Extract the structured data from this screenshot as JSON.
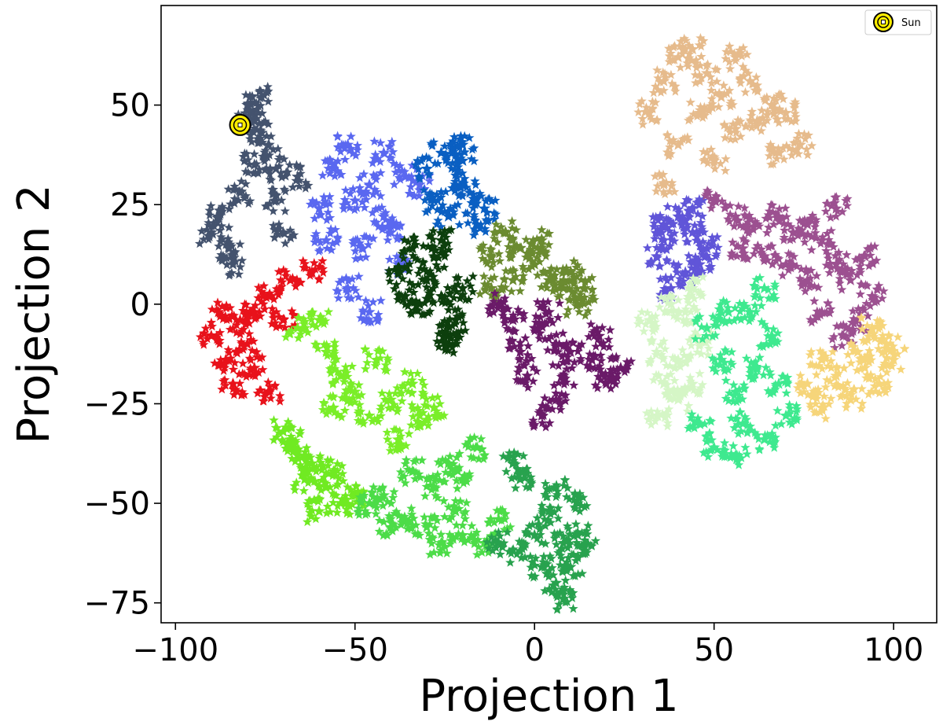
{
  "chart_data": {
    "type": "scatter",
    "title": "",
    "xlabel": "Projection 1",
    "ylabel": "Projection 2",
    "xlim": [
      -104,
      112
    ],
    "ylim": [
      -80,
      75
    ],
    "xticks": [
      -100,
      -50,
      0,
      50,
      100
    ],
    "yticks": [
      -75,
      -50,
      -25,
      0,
      25,
      50
    ],
    "xtick_labels": [
      "−100",
      "−50",
      "0",
      "50",
      "100"
    ],
    "ytick_labels": [
      "−75",
      "−50",
      "−25",
      "0",
      "25",
      "50"
    ],
    "marker": "star",
    "grid": false,
    "legend": {
      "position": "top-right",
      "entries": [
        "Sun"
      ]
    },
    "highlight": {
      "label": "Sun",
      "x": -82,
      "y": 45,
      "color": "#ffee00",
      "edge": "#000000"
    },
    "clusters": [
      {
        "color": "#44536e",
        "points": [
          [
            -88,
            22
          ],
          [
            -85,
            14
          ],
          [
            -82,
            28
          ],
          [
            -78,
            35
          ],
          [
            -76,
            43
          ],
          [
            -80,
            50
          ],
          [
            -78,
            46
          ],
          [
            -72,
            26
          ],
          [
            -70,
            18
          ],
          [
            -84,
            10
          ],
          [
            -66,
            32
          ],
          [
            -74,
            40
          ],
          [
            -76,
            52
          ],
          [
            -90,
            18
          ],
          [
            -72,
            34
          ]
        ]
      },
      {
        "color": "#5a68f0",
        "points": [
          [
            -60,
            24
          ],
          [
            -56,
            34
          ],
          [
            -52,
            40
          ],
          [
            -46,
            30
          ],
          [
            -48,
            14
          ],
          [
            -42,
            22
          ],
          [
            -38,
            10
          ],
          [
            -36,
            32
          ],
          [
            -32,
            30
          ],
          [
            -52,
            4
          ],
          [
            -46,
            -2
          ],
          [
            -58,
            16
          ],
          [
            -42,
            38
          ],
          [
            -50,
            26
          ],
          [
            -40,
            18
          ]
        ]
      },
      {
        "color": "#0a5fc2",
        "points": [
          [
            -30,
            34
          ],
          [
            -26,
            38
          ],
          [
            -22,
            30
          ],
          [
            -18,
            28
          ],
          [
            -20,
            36
          ],
          [
            -14,
            24
          ],
          [
            -24,
            22
          ],
          [
            -16,
            20
          ],
          [
            -28,
            26
          ],
          [
            -20,
            40
          ]
        ]
      },
      {
        "color": "#0d3f0d",
        "points": [
          [
            -38,
            8
          ],
          [
            -34,
            14
          ],
          [
            -30,
            6
          ],
          [
            -28,
            12
          ],
          [
            -26,
            2
          ],
          [
            -22,
            -4
          ],
          [
            -24,
            -10
          ],
          [
            -32,
            0
          ],
          [
            -20,
            4
          ],
          [
            -26,
            16
          ],
          [
            -36,
            2
          ],
          [
            -24,
            -8
          ]
        ]
      },
      {
        "color": "#6b8b30",
        "points": [
          [
            -12,
            12
          ],
          [
            -8,
            18
          ],
          [
            -4,
            14
          ],
          [
            0,
            10
          ],
          [
            4,
            6
          ],
          [
            8,
            4
          ],
          [
            12,
            0
          ],
          [
            14,
            4
          ],
          [
            -6,
            6
          ],
          [
            -12,
            4
          ],
          [
            2,
            16
          ],
          [
            10,
            8
          ]
        ]
      },
      {
        "color": "#6a1a68",
        "points": [
          [
            -10,
            0
          ],
          [
            -6,
            -4
          ],
          [
            0,
            -6
          ],
          [
            4,
            -2
          ],
          [
            6,
            -10
          ],
          [
            10,
            -12
          ],
          [
            8,
            -18
          ],
          [
            6,
            -24
          ],
          [
            2,
            -28
          ],
          [
            -4,
            -12
          ],
          [
            18,
            -8
          ],
          [
            24,
            -16
          ],
          [
            16,
            -14
          ],
          [
            -2,
            -18
          ],
          [
            20,
            -20
          ]
        ]
      },
      {
        "color": "#e8121b",
        "points": [
          [
            -90,
            -8
          ],
          [
            -86,
            -14
          ],
          [
            -82,
            -4
          ],
          [
            -84,
            -20
          ],
          [
            -78,
            -16
          ],
          [
            -74,
            -22
          ],
          [
            -78,
            -2
          ],
          [
            -74,
            2
          ],
          [
            -68,
            6
          ],
          [
            -62,
            8
          ],
          [
            -70,
            -4
          ],
          [
            -88,
            -2
          ],
          [
            -80,
            -10
          ]
        ]
      },
      {
        "color": "#7aee28",
        "points": [
          [
            -66,
            -6
          ],
          [
            -58,
            -12
          ],
          [
            -54,
            -18
          ],
          [
            -50,
            -22
          ],
          [
            -46,
            -28
          ],
          [
            -40,
            -24
          ],
          [
            -34,
            -20
          ],
          [
            -32,
            -28
          ],
          [
            -38,
            -34
          ],
          [
            -28,
            -26
          ],
          [
            -60,
            -4
          ],
          [
            -56,
            -26
          ],
          [
            -44,
            -14
          ]
        ]
      },
      {
        "color": "#70ea22",
        "points": [
          [
            -70,
            -32
          ],
          [
            -66,
            -38
          ],
          [
            -64,
            -44
          ],
          [
            -58,
            -46
          ],
          [
            -54,
            -50
          ],
          [
            -62,
            -40
          ],
          [
            -56,
            -42
          ],
          [
            -68,
            -34
          ],
          [
            -50,
            -48
          ],
          [
            -60,
            -52
          ]
        ]
      },
      {
        "color": "#4cdc48",
        "points": [
          [
            -46,
            -50
          ],
          [
            -42,
            -48
          ],
          [
            -36,
            -54
          ],
          [
            -30,
            -56
          ],
          [
            -26,
            -60
          ],
          [
            -20,
            -58
          ],
          [
            -14,
            -60
          ],
          [
            -20,
            -44
          ],
          [
            -24,
            -40
          ],
          [
            -16,
            -36
          ],
          [
            -28,
            -46
          ],
          [
            -34,
            -42
          ],
          [
            -10,
            -54
          ],
          [
            -40,
            -56
          ],
          [
            -22,
            -52
          ]
        ]
      },
      {
        "color": "#28a24e",
        "points": [
          [
            -10,
            -60
          ],
          [
            -4,
            -62
          ],
          [
            0,
            -58
          ],
          [
            4,
            -52
          ],
          [
            6,
            -46
          ],
          [
            8,
            -60
          ],
          [
            10,
            -66
          ],
          [
            12,
            -58
          ],
          [
            14,
            -62
          ],
          [
            6,
            -70
          ],
          [
            8,
            -74
          ],
          [
            -6,
            -40
          ],
          [
            -4,
            -44
          ],
          [
            2,
            -66
          ],
          [
            12,
            -50
          ]
        ]
      },
      {
        "color": "#e6bb8c",
        "points": [
          [
            32,
            48
          ],
          [
            36,
            56
          ],
          [
            40,
            62
          ],
          [
            44,
            64
          ],
          [
            48,
            58
          ],
          [
            52,
            52
          ],
          [
            56,
            44
          ],
          [
            60,
            56
          ],
          [
            66,
            50
          ],
          [
            70,
            48
          ],
          [
            74,
            40
          ],
          [
            68,
            38
          ],
          [
            40,
            40
          ],
          [
            36,
            30
          ],
          [
            50,
            36
          ],
          [
            62,
            46
          ],
          [
            46,
            48
          ],
          [
            56,
            62
          ]
        ]
      },
      {
        "color": "#6055d8",
        "points": [
          [
            34,
            12
          ],
          [
            36,
            20
          ],
          [
            40,
            22
          ],
          [
            44,
            18
          ],
          [
            46,
            10
          ],
          [
            42,
            8
          ],
          [
            38,
            4
          ],
          [
            36,
            16
          ],
          [
            48,
            14
          ],
          [
            44,
            24
          ]
        ]
      },
      {
        "color": "#9c5090",
        "points": [
          [
            50,
            26
          ],
          [
            56,
            22
          ],
          [
            62,
            20
          ],
          [
            68,
            22
          ],
          [
            72,
            18
          ],
          [
            76,
            20
          ],
          [
            80,
            16
          ],
          [
            84,
            10
          ],
          [
            88,
            6
          ],
          [
            92,
            12
          ],
          [
            90,
            -4
          ],
          [
            86,
            -8
          ],
          [
            80,
            -2
          ],
          [
            76,
            6
          ],
          [
            70,
            10
          ],
          [
            64,
            12
          ],
          [
            58,
            14
          ],
          [
            84,
            24
          ],
          [
            94,
            2
          ]
        ]
      },
      {
        "color": "#d5f6c6",
        "points": [
          [
            32,
            -4
          ],
          [
            34,
            -12
          ],
          [
            36,
            -20
          ],
          [
            40,
            -24
          ],
          [
            44,
            -20
          ],
          [
            46,
            -10
          ],
          [
            42,
            -2
          ],
          [
            38,
            0
          ],
          [
            34,
            -28
          ],
          [
            44,
            4
          ],
          [
            40,
            -14
          ]
        ]
      },
      {
        "color": "#3ee98f",
        "points": [
          [
            48,
            -6
          ],
          [
            52,
            -14
          ],
          [
            56,
            -22
          ],
          [
            58,
            -30
          ],
          [
            56,
            -38
          ],
          [
            50,
            -36
          ],
          [
            46,
            -30
          ],
          [
            60,
            -2
          ],
          [
            64,
            4
          ],
          [
            66,
            -8
          ],
          [
            68,
            -20
          ],
          [
            70,
            -28
          ],
          [
            64,
            -34
          ],
          [
            62,
            -16
          ],
          [
            54,
            -2
          ]
        ]
      },
      {
        "color": "#f6d57a",
        "points": [
          [
            76,
            -20
          ],
          [
            80,
            -26
          ],
          [
            84,
            -18
          ],
          [
            88,
            -24
          ],
          [
            92,
            -16
          ],
          [
            96,
            -20
          ],
          [
            98,
            -10
          ],
          [
            100,
            -14
          ],
          [
            94,
            -6
          ],
          [
            90,
            -12
          ],
          [
            80,
            -14
          ]
        ]
      }
    ]
  }
}
